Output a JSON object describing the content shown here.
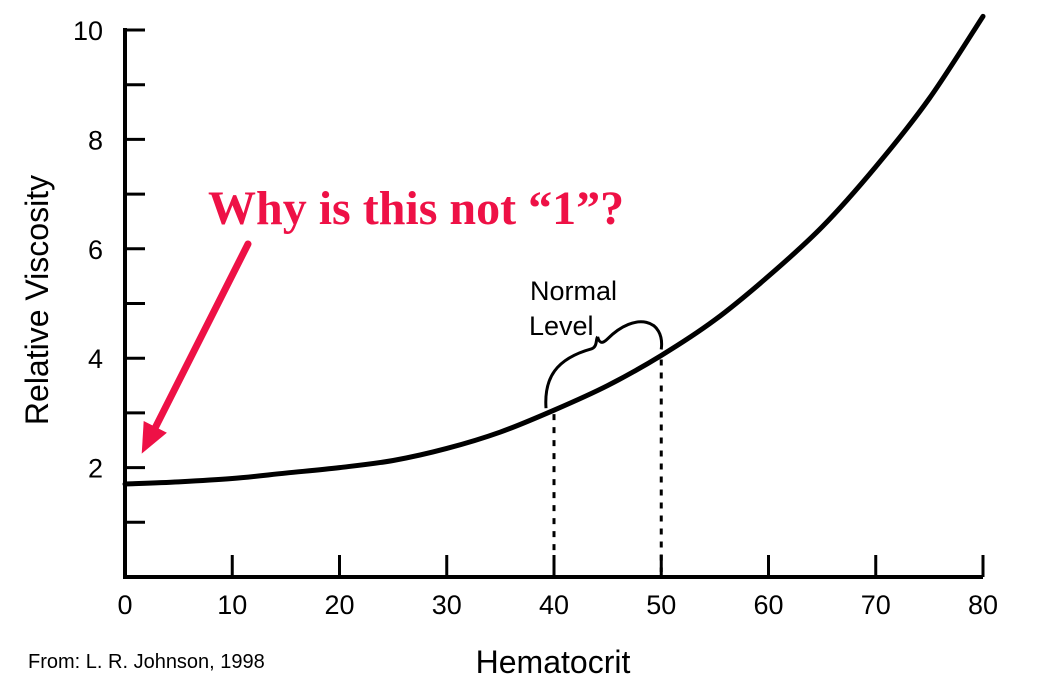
{
  "chart_data": {
    "type": "line",
    "xlabel": "Hematocrit",
    "ylabel": "Relative Viscosity",
    "xlim": [
      0,
      80
    ],
    "ylim": [
      0,
      10
    ],
    "x_ticks": [
      0,
      10,
      20,
      30,
      40,
      50,
      60,
      70,
      80
    ],
    "y_tick_labels": [
      2,
      4,
      6,
      8,
      10
    ],
    "y_minor_ticks": [
      1,
      3,
      5,
      7,
      9
    ],
    "series": [
      {
        "x": [
          0,
          5,
          10,
          15,
          20,
          25,
          30,
          35,
          40,
          45,
          50,
          55,
          60,
          65,
          70,
          75,
          80
        ],
        "y": [
          1.7,
          1.74,
          1.8,
          1.9,
          2.0,
          2.13,
          2.35,
          2.65,
          3.05,
          3.5,
          4.05,
          4.7,
          5.5,
          6.4,
          7.5,
          8.75,
          10.25
        ]
      }
    ],
    "normal_level": {
      "label_lines": [
        "Normal",
        "Level"
      ],
      "x_range": [
        40,
        50
      ]
    },
    "annotation": {
      "text": "Why is this not “1”?",
      "color": "#ee1146",
      "points_to": {
        "x": 1,
        "y": 2.2
      }
    },
    "source": "From: L. R. Johnson, 1998",
    "line_color": "#000000"
  }
}
